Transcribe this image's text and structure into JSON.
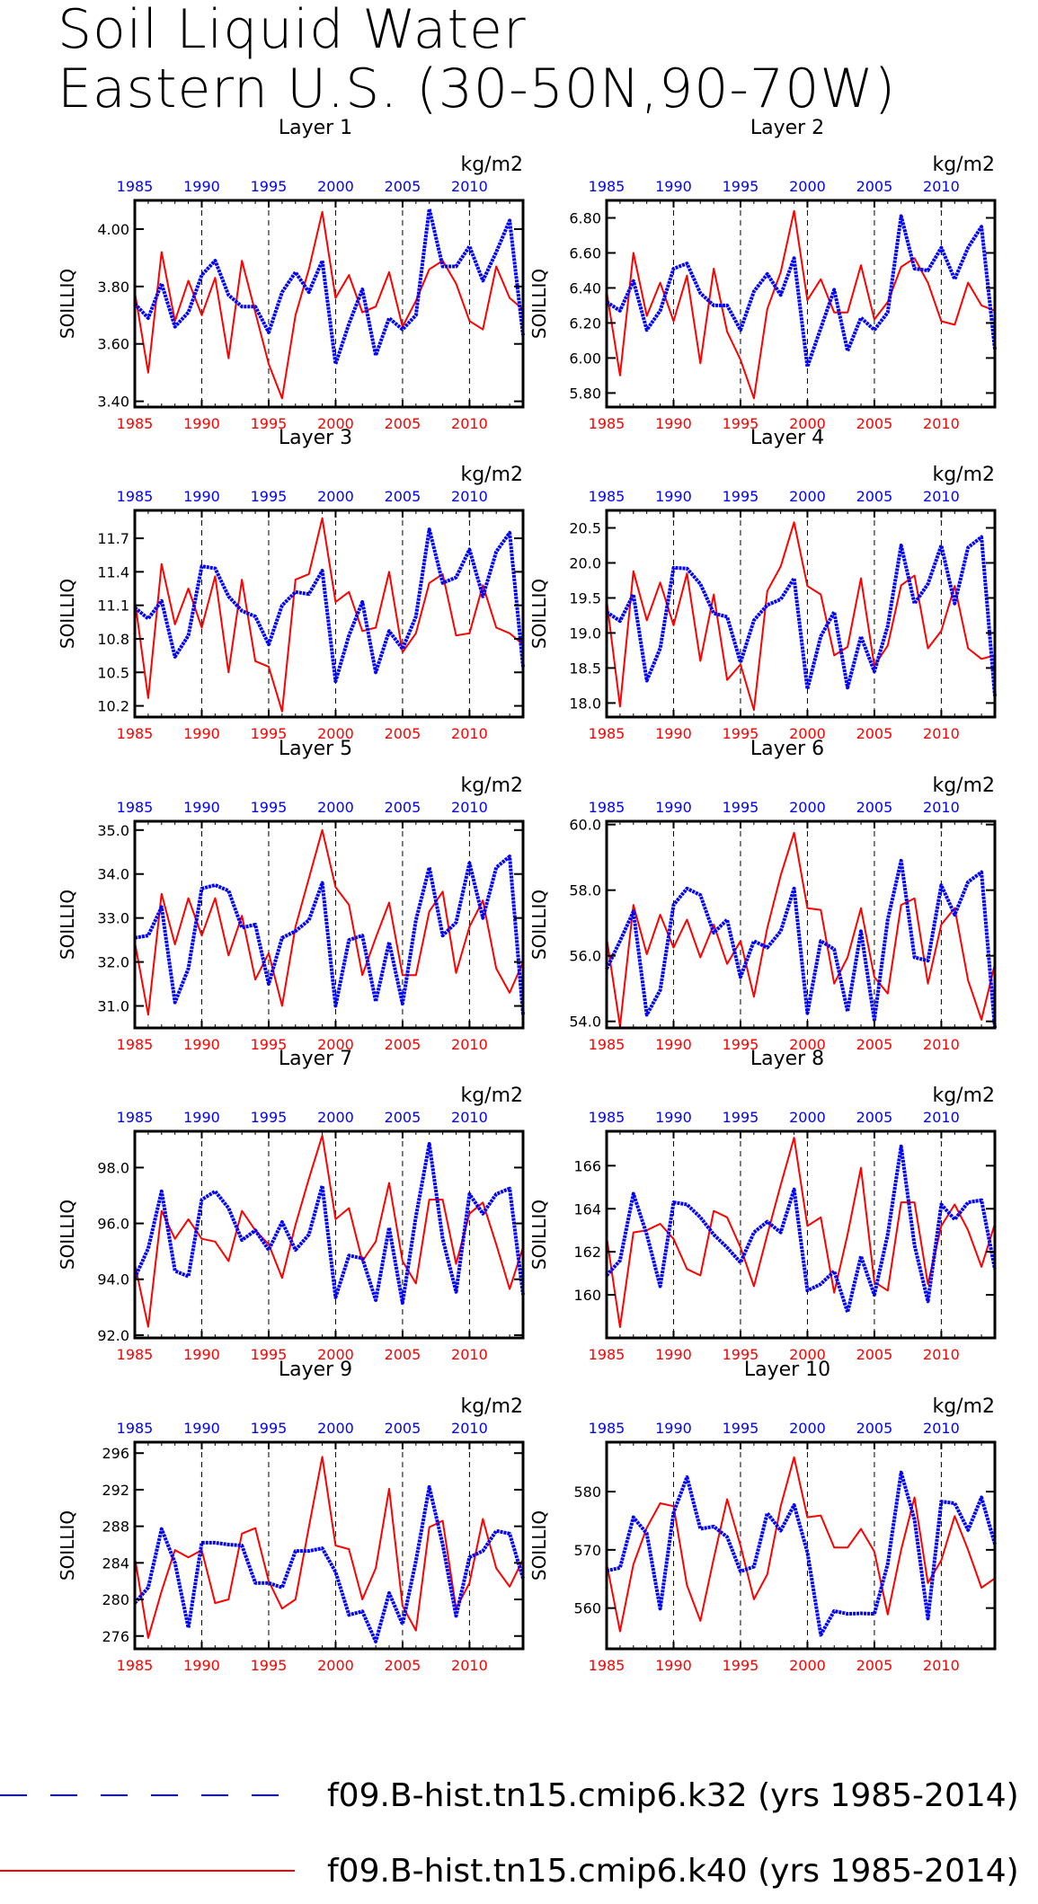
{
  "figure": {
    "title_line1": "Soil Liquid Water",
    "title_line2": "Eastern U.S. (30-50N,90-70W)",
    "units": "kg/m2",
    "ylabel": "SOILLIQ",
    "colors": {
      "series_k32": "#0000ff",
      "series_k40": "#ff0000",
      "axes": "#000000"
    },
    "legend": [
      {
        "label": "f09.B-hist.tn15.cmip6.k32 (yrs 1985-2014)",
        "color": "#0000ff",
        "style": "dashed"
      },
      {
        "label": "f09.B-hist.tn15.cmip6.k40 (yrs 1985-2014)",
        "color": "#ff0000",
        "style": "solid"
      }
    ]
  },
  "chart_data": [
    {
      "type": "line",
      "title": "Layer 1",
      "ylabel": "SOILLIQ",
      "ylim": [
        3.38,
        4.1
      ],
      "yticks": [
        3.4,
        3.6,
        3.8,
        4.0
      ],
      "ytick_labels": [
        "3.40",
        "3.60",
        "3.80",
        "4.00"
      ],
      "xticks": [
        1985,
        1990,
        1995,
        2000,
        2005,
        2010
      ],
      "xlim": [
        1985,
        2014
      ],
      "series": [
        {
          "name": "f09.B-hist.tn15.cmip6.k32 (yrs 1985-2014)",
          "color": "#0000ff",
          "values": [
            3.74,
            3.69,
            3.81,
            3.66,
            3.71,
            3.84,
            3.89,
            3.77,
            3.73,
            3.73,
            3.64,
            3.78,
            3.85,
            3.78,
            3.89,
            3.53,
            3.67,
            3.79,
            3.56,
            3.69,
            3.65,
            3.7,
            4.07,
            3.87,
            3.87,
            3.94,
            3.82,
            3.92,
            4.03,
            3.63
          ]
        },
        {
          "name": "f09.B-hist.tn15.cmip6.k40 (yrs 1985-2014)",
          "color": "#ff0000",
          "values": [
            3.78,
            3.5,
            3.92,
            3.68,
            3.82,
            3.7,
            3.83,
            3.55,
            3.89,
            3.71,
            3.53,
            3.41,
            3.7,
            3.86,
            4.06,
            3.76,
            3.84,
            3.71,
            3.73,
            3.85,
            3.66,
            3.75,
            3.86,
            3.89,
            3.81,
            3.68,
            3.65,
            3.87,
            3.76,
            3.72
          ]
        }
      ]
    },
    {
      "type": "line",
      "title": "Layer 2",
      "ylabel": "SOILLIQ",
      "ylim": [
        5.72,
        6.9
      ],
      "yticks": [
        5.8,
        6.0,
        6.2,
        6.4,
        6.6,
        6.8
      ],
      "ytick_labels": [
        "5.80",
        "6.00",
        "6.20",
        "6.40",
        "6.60",
        "6.80"
      ],
      "xticks": [
        1985,
        1990,
        1995,
        2000,
        2005,
        2010
      ],
      "xlim": [
        1985,
        2014
      ],
      "series": [
        {
          "name": "f09.B-hist.tn15.cmip6.k32 (yrs 1985-2014)",
          "color": "#0000ff",
          "values": [
            6.32,
            6.27,
            6.44,
            6.16,
            6.27,
            6.51,
            6.54,
            6.37,
            6.3,
            6.3,
            6.16,
            6.38,
            6.48,
            6.36,
            6.57,
            5.95,
            6.17,
            6.39,
            6.04,
            6.23,
            6.16,
            6.26,
            6.81,
            6.51,
            6.5,
            6.63,
            6.45,
            6.63,
            6.75,
            6.05
          ]
        },
        {
          "name": "f09.B-hist.tn15.cmip6.k40 (yrs 1985-2014)",
          "color": "#ff0000",
          "values": [
            6.38,
            5.9,
            6.6,
            6.24,
            6.43,
            6.21,
            6.47,
            5.97,
            6.51,
            6.15,
            5.99,
            5.77,
            6.28,
            6.49,
            6.84,
            6.33,
            6.45,
            6.26,
            6.26,
            6.53,
            6.22,
            6.32,
            6.52,
            6.57,
            6.43,
            6.21,
            6.19,
            6.43,
            6.3,
            6.27
          ]
        }
      ]
    },
    {
      "type": "line",
      "title": "Layer 3",
      "ylabel": "SOILLIQ",
      "ylim": [
        10.1,
        11.95
      ],
      "yticks": [
        10.2,
        10.5,
        10.8,
        11.1,
        11.4,
        11.7
      ],
      "ytick_labels": [
        "10.2",
        "10.5",
        "10.8",
        "11.1",
        "11.4",
        "11.7"
      ],
      "xticks": [
        1985,
        1990,
        1995,
        2000,
        2005,
        2010
      ],
      "xlim": [
        1985,
        2014
      ],
      "series": [
        {
          "name": "f09.B-hist.tn15.cmip6.k32 (yrs 1985-2014)",
          "color": "#0000ff",
          "values": [
            11.08,
            10.98,
            11.14,
            10.64,
            10.83,
            11.45,
            11.43,
            11.18,
            11.05,
            11.0,
            10.75,
            11.1,
            11.22,
            11.2,
            11.41,
            10.42,
            10.83,
            11.13,
            10.5,
            10.87,
            10.71,
            11.0,
            11.78,
            11.3,
            11.35,
            11.6,
            11.18,
            11.58,
            11.75,
            10.55
          ]
        },
        {
          "name": "f09.B-hist.tn15.cmip6.k40 (yrs 1985-2014)",
          "color": "#ff0000",
          "values": [
            11.15,
            10.27,
            11.47,
            10.93,
            11.25,
            10.9,
            11.36,
            10.5,
            11.33,
            10.6,
            10.55,
            10.15,
            11.33,
            11.38,
            11.88,
            11.13,
            11.22,
            10.87,
            10.9,
            11.4,
            10.68,
            10.85,
            11.3,
            11.38,
            10.83,
            10.85,
            11.28,
            10.9,
            10.85,
            10.75
          ]
        }
      ]
    },
    {
      "type": "line",
      "title": "Layer 4",
      "ylabel": "SOILLIQ",
      "ylim": [
        17.8,
        20.75
      ],
      "yticks": [
        18.0,
        18.5,
        19.0,
        19.5,
        20.0,
        20.5
      ],
      "ytick_labels": [
        "18.0",
        "18.5",
        "19.0",
        "19.5",
        "20.0",
        "20.5"
      ],
      "xticks": [
        1985,
        1990,
        1995,
        2000,
        2005,
        2010
      ],
      "xlim": [
        1985,
        2014
      ],
      "series": [
        {
          "name": "f09.B-hist.tn15.cmip6.k32 (yrs 1985-2014)",
          "color": "#0000ff",
          "values": [
            19.3,
            19.17,
            19.55,
            18.32,
            18.78,
            19.93,
            19.92,
            19.7,
            19.28,
            19.23,
            18.58,
            19.18,
            19.4,
            19.48,
            19.78,
            18.2,
            18.95,
            19.3,
            18.22,
            18.95,
            18.45,
            19.1,
            20.25,
            19.42,
            19.7,
            20.25,
            19.42,
            20.22,
            20.37,
            18.1
          ]
        },
        {
          "name": "f09.B-hist.tn15.cmip6.k40 (yrs 1985-2014)",
          "color": "#ff0000",
          "values": [
            19.47,
            17.95,
            19.88,
            19.18,
            19.72,
            19.11,
            19.85,
            18.6,
            19.55,
            18.33,
            18.55,
            17.9,
            19.6,
            19.95,
            20.58,
            19.67,
            19.55,
            18.68,
            18.8,
            19.78,
            18.53,
            18.82,
            19.68,
            19.82,
            18.78,
            19.03,
            19.67,
            18.78,
            18.63,
            18.68
          ]
        }
      ]
    },
    {
      "type": "line",
      "title": "Layer 5",
      "ylabel": "SOILLIQ",
      "ylim": [
        30.5,
        35.2
      ],
      "yticks": [
        31.0,
        32.0,
        33.0,
        34.0,
        35.0
      ],
      "ytick_labels": [
        "31.0",
        "32.0",
        "33.0",
        "34.0",
        "35.0"
      ],
      "xticks": [
        1985,
        1990,
        1995,
        2000,
        2005,
        2010
      ],
      "xlim": [
        1985,
        2014
      ],
      "series": [
        {
          "name": "f09.B-hist.tn15.cmip6.k32 (yrs 1985-2014)",
          "color": "#0000ff",
          "values": [
            32.55,
            32.6,
            33.25,
            31.08,
            31.85,
            33.67,
            33.75,
            33.62,
            32.78,
            32.85,
            31.5,
            32.55,
            32.7,
            32.95,
            33.8,
            31.0,
            32.5,
            32.6,
            31.1,
            32.45,
            31.05,
            32.95,
            34.15,
            32.6,
            32.9,
            34.25,
            33.0,
            34.15,
            34.4,
            30.8
          ]
        },
        {
          "name": "f09.B-hist.tn15.cmip6.k40 (yrs 1985-2014)",
          "color": "#ff0000",
          "values": [
            32.45,
            30.8,
            33.55,
            32.4,
            33.45,
            32.6,
            33.45,
            32.15,
            33.05,
            31.6,
            32.2,
            31.0,
            32.8,
            33.9,
            35.0,
            33.7,
            33.3,
            31.7,
            32.55,
            33.35,
            31.7,
            31.7,
            33.15,
            33.6,
            31.75,
            32.8,
            33.4,
            31.85,
            31.3,
            32.0
          ]
        }
      ]
    },
    {
      "type": "line",
      "title": "Layer 6",
      "ylabel": "SOILLIQ",
      "ylim": [
        53.8,
        60.1
      ],
      "yticks": [
        54.0,
        56.0,
        58.0,
        60.0
      ],
      "ytick_labels": [
        "54.0",
        "56.0",
        "58.0",
        "60.0"
      ],
      "xticks": [
        1985,
        1990,
        1995,
        2000,
        2005,
        2010
      ],
      "xlim": [
        1985,
        2014
      ],
      "series": [
        {
          "name": "f09.B-hist.tn15.cmip6.k32 (yrs 1985-2014)",
          "color": "#0000ff",
          "values": [
            55.6,
            56.45,
            57.35,
            54.2,
            54.95,
            57.55,
            58.05,
            57.85,
            56.7,
            57.1,
            55.35,
            56.45,
            56.25,
            56.75,
            58.05,
            54.25,
            56.45,
            56.2,
            54.3,
            56.75,
            54.05,
            57.1,
            58.9,
            55.95,
            55.85,
            58.15,
            57.25,
            58.25,
            58.55,
            53.8
          ]
        },
        {
          "name": "f09.B-hist.tn15.cmip6.k40 (yrs 1985-2014)",
          "color": "#ff0000",
          "values": [
            56.55,
            53.85,
            57.55,
            56.05,
            57.25,
            56.25,
            57.1,
            55.95,
            56.95,
            55.75,
            56.45,
            54.75,
            56.85,
            58.45,
            59.75,
            57.45,
            57.4,
            55.15,
            55.95,
            57.45,
            55.35,
            54.85,
            57.55,
            57.75,
            55.15,
            56.95,
            57.45,
            55.25,
            54.05,
            55.75
          ]
        }
      ]
    },
    {
      "type": "line",
      "title": "Layer 7",
      "ylabel": "SOILLIQ",
      "ylim": [
        91.9,
        99.3
      ],
      "yticks": [
        92.0,
        94.0,
        96.0,
        98.0
      ],
      "ytick_labels": [
        "92.0",
        "94.0",
        "96.0",
        "98.0"
      ],
      "xticks": [
        1985,
        1990,
        1995,
        2000,
        2005,
        2010
      ],
      "xlim": [
        1985,
        2014
      ],
      "series": [
        {
          "name": "f09.B-hist.tn15.cmip6.k32 (yrs 1985-2014)",
          "color": "#0000ff",
          "values": [
            94.05,
            95.1,
            97.15,
            94.3,
            94.1,
            96.85,
            97.15,
            96.55,
            95.4,
            95.75,
            95.05,
            96.05,
            95.05,
            95.6,
            97.35,
            93.35,
            94.85,
            94.75,
            93.25,
            95.85,
            93.15,
            96.25,
            98.85,
            95.45,
            93.55,
            97.05,
            96.35,
            97.05,
            97.25,
            93.45
          ]
        },
        {
          "name": "f09.B-hist.tn15.cmip6.k40 (yrs 1985-2014)",
          "color": "#ff0000",
          "values": [
            94.55,
            92.3,
            96.45,
            95.45,
            96.15,
            95.45,
            95.35,
            94.65,
            96.45,
            95.75,
            95.25,
            94.05,
            95.95,
            97.6,
            99.15,
            96.15,
            96.55,
            94.65,
            95.35,
            97.45,
            94.65,
            93.85,
            96.85,
            96.85,
            94.55,
            96.35,
            96.75,
            95.25,
            93.65,
            95.15
          ]
        }
      ]
    },
    {
      "type": "line",
      "title": "Layer 8",
      "ylabel": "SOILLIQ",
      "ylim": [
        158.0,
        167.6
      ],
      "yticks": [
        160,
        162,
        164,
        166
      ],
      "ytick_labels": [
        "160",
        "162",
        "164",
        "166"
      ],
      "xticks": [
        1985,
        1990,
        1995,
        2000,
        2005,
        2010
      ],
      "xlim": [
        1985,
        2014
      ],
      "series": [
        {
          "name": "f09.B-hist.tn15.cmip6.k32 (yrs 1985-2014)",
          "color": "#0000ff",
          "values": [
            160.9,
            161.6,
            164.7,
            162.8,
            160.4,
            164.3,
            164.2,
            163.6,
            162.8,
            162.2,
            161.5,
            162.9,
            163.4,
            162.9,
            164.9,
            160.2,
            160.5,
            161.1,
            159.2,
            161.8,
            160.0,
            162.8,
            166.9,
            162.3,
            159.7,
            164.2,
            163.5,
            164.3,
            164.4,
            161.2
          ]
        },
        {
          "name": "f09.B-hist.tn15.cmip6.k40 (yrs 1985-2014)",
          "color": "#ff0000",
          "values": [
            162.7,
            158.5,
            162.9,
            163.0,
            163.3,
            162.6,
            161.2,
            160.9,
            163.9,
            163.6,
            162.2,
            160.4,
            162.8,
            165.1,
            167.3,
            163.2,
            163.6,
            160.1,
            162.8,
            165.9,
            160.6,
            160.2,
            164.3,
            164.3,
            160.5,
            163.2,
            164.2,
            163.0,
            161.3,
            163.3
          ]
        }
      ]
    },
    {
      "type": "line",
      "title": "Layer 9",
      "ylabel": "SOILLIQ",
      "ylim": [
        274.6,
        297.2
      ],
      "yticks": [
        276,
        280,
        284,
        288,
        292,
        296
      ],
      "ytick_labels": [
        "276",
        "280",
        "284",
        "288",
        "292",
        "296"
      ],
      "xticks": [
        1985,
        1990,
        1995,
        2000,
        2005,
        2010
      ],
      "xlim": [
        1985,
        2014
      ],
      "series": [
        {
          "name": "f09.B-hist.tn15.cmip6.k32 (yrs 1985-2014)",
          "color": "#0000ff",
          "values": [
            279.6,
            281.3,
            287.7,
            284.0,
            276.9,
            286.2,
            286.2,
            286.0,
            285.9,
            281.8,
            281.8,
            281.3,
            285.3,
            285.3,
            285.6,
            283.0,
            278.3,
            278.7,
            275.4,
            280.7,
            277.3,
            284.2,
            292.3,
            286.0,
            278.2,
            284.6,
            285.3,
            287.5,
            287.2,
            282.3
          ]
        },
        {
          "name": "f09.B-hist.tn15.cmip6.k40 (yrs 1985-2014)",
          "color": "#ff0000",
          "values": [
            284.6,
            275.8,
            280.9,
            285.4,
            284.6,
            285.4,
            279.6,
            280.0,
            287.2,
            287.8,
            282.0,
            279.0,
            280.0,
            287.9,
            295.6,
            285.9,
            285.5,
            280.0,
            283.4,
            292.1,
            279.3,
            276.6,
            287.9,
            288.6,
            279.0,
            281.8,
            288.8,
            283.4,
            281.4,
            284.4
          ]
        }
      ]
    },
    {
      "type": "line",
      "title": "Layer 10",
      "ylabel": "SOILLIQ",
      "ylim": [
        553.0,
        588.5
      ],
      "yticks": [
        560,
        570,
        580
      ],
      "ytick_labels": [
        "560",
        "570",
        "580"
      ],
      "xticks": [
        1985,
        1990,
        1995,
        2000,
        2005,
        2010
      ],
      "xlim": [
        1985,
        2014
      ],
      "series": [
        {
          "name": "f09.B-hist.tn15.cmip6.k32 (yrs 1985-2014)",
          "color": "#0000ff",
          "values": [
            566.4,
            566.9,
            575.6,
            572.8,
            559.9,
            576.4,
            582.5,
            573.6,
            574.0,
            572.2,
            566.3,
            567.1,
            576.3,
            573.3,
            577.7,
            569.6,
            555.4,
            559.5,
            559.0,
            559.1,
            559.0,
            567.6,
            583.3,
            575.2,
            558.2,
            578.3,
            578.0,
            573.4,
            579.0,
            571.0
          ]
        },
        {
          "name": "f09.B-hist.tn15.cmip6.k40 (yrs 1985-2014)",
          "color": "#ff0000",
          "values": [
            567.7,
            556.0,
            567.5,
            573.8,
            578.0,
            577.5,
            563.9,
            557.8,
            568.5,
            578.7,
            570.7,
            561.5,
            565.8,
            577.5,
            585.9,
            575.6,
            575.9,
            570.4,
            570.4,
            573.6,
            569.7,
            558.9,
            570.0,
            579.0,
            564.3,
            568.2,
            575.8,
            570.0,
            563.5,
            565.1
          ]
        }
      ]
    }
  ]
}
